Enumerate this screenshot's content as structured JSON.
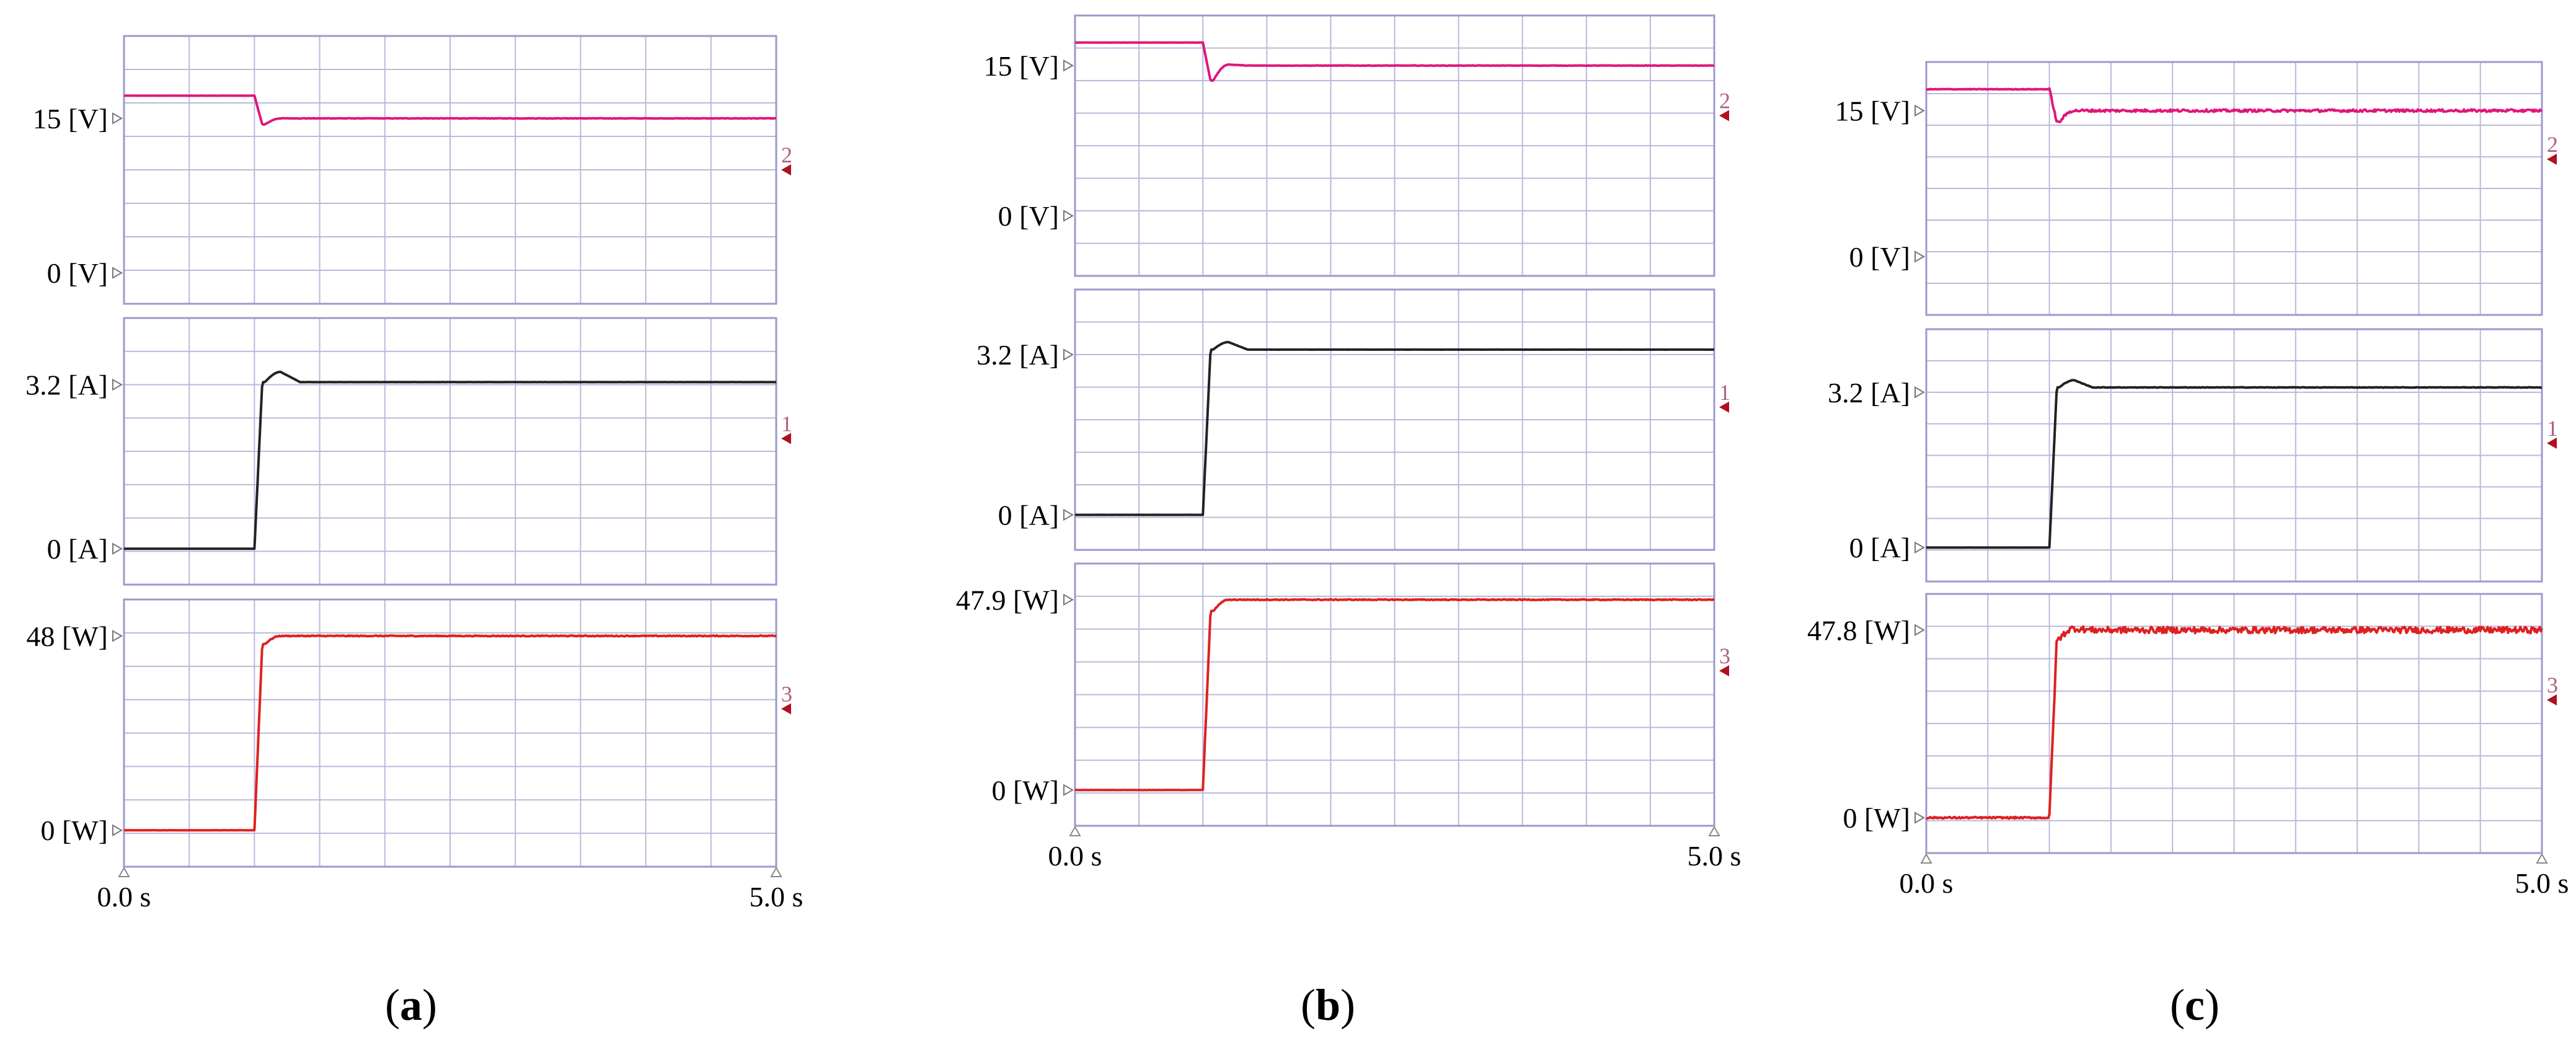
{
  "chart_data": [
    {
      "type": "line",
      "caption": {
        "open": "(",
        "letter": "a",
        "close": ")"
      },
      "x_ticks": [
        "0.0 s",
        "5.0 s"
      ],
      "xlim": [
        0,
        5
      ],
      "step_time": 1.0,
      "panels": [
        {
          "channel": "2",
          "color": "#e0167a",
          "ylim": [
            -3,
            23
          ],
          "ticks": [
            {
              "v": 15,
              "label": "15 [V]"
            },
            {
              "v": 0,
              "label": "0 [V]"
            }
          ],
          "marker_v": 10,
          "before": 17.2,
          "after": 15.0,
          "dip": 14.4,
          "overshoot": 15.0,
          "noise": 0.04
        },
        {
          "channel": "1",
          "color": "#222222",
          "ylim": [
            -0.7,
            4.5
          ],
          "ticks": [
            {
              "v": 3.2,
              "label": "3.2 [A]"
            },
            {
              "v": 0,
              "label": "0 [A]"
            }
          ],
          "marker_v": 2.15,
          "before": 0,
          "after": 3.25,
          "dip": 3.25,
          "overshoot": 3.45,
          "noise": 0.008
        },
        {
          "channel": "3",
          "color": "#e02020",
          "ylim": [
            -9,
            57
          ],
          "ticks": [
            {
              "v": 48,
              "label": "48 [W]"
            },
            {
              "v": 0,
              "label": "0 [W]"
            }
          ],
          "marker_v": 30,
          "before": 0,
          "after": 48,
          "dip": 46,
          "overshoot": 48,
          "noise": 0.08
        }
      ]
    },
    {
      "type": "line",
      "caption": {
        "open": "(",
        "letter": "b",
        "close": ")"
      },
      "x_ticks": [
        "0.0 s",
        "5.0 s"
      ],
      "xlim": [
        0,
        5
      ],
      "step_time": 1.0,
      "panels": [
        {
          "channel": "2",
          "color": "#e0167a",
          "ylim": [
            -6,
            20
          ],
          "ticks": [
            {
              "v": 15,
              "label": "15 [V]"
            },
            {
              "v": 0,
              "label": "0 [V]"
            }
          ],
          "marker_v": 10,
          "before": 17.3,
          "after": 15.0,
          "dip": 13.5,
          "overshoot": 15.1,
          "noise": 0.04
        },
        {
          "channel": "1",
          "color": "#222222",
          "ylim": [
            -0.7,
            4.5
          ],
          "ticks": [
            {
              "v": 3.2,
              "label": "3.2 [A]"
            },
            {
              "v": 0,
              "label": "0 [A]"
            }
          ],
          "marker_v": 2.15,
          "before": 0,
          "after": 3.3,
          "dip": 3.3,
          "overshoot": 3.45,
          "noise": 0.008
        },
        {
          "channel": "3",
          "color": "#e02020",
          "ylim": [
            -9,
            57
          ],
          "ticks": [
            {
              "v": 47.9,
              "label": "47.9 [W]"
            },
            {
              "v": 0,
              "label": "0 [W]"
            }
          ],
          "marker_v": 30,
          "before": 0,
          "after": 47.9,
          "dip": 45,
          "overshoot": 47.9,
          "noise": 0.08
        }
      ]
    },
    {
      "type": "line",
      "caption": {
        "open": "(",
        "letter": "c",
        "close": ")"
      },
      "x_ticks": [
        "0.0 s",
        "5.0 s"
      ],
      "xlim": [
        0,
        5
      ],
      "step_time": 1.0,
      "panels": [
        {
          "channel": "2",
          "color": "#e0167a",
          "ylim": [
            -6,
            20
          ],
          "ticks": [
            {
              "v": 15,
              "label": "15 [V]"
            },
            {
              "v": 0,
              "label": "0 [V]"
            }
          ],
          "marker_v": 10,
          "before": 17.2,
          "after": 15.0,
          "dip": 13.8,
          "overshoot": 15.0,
          "noise": 0.25
        },
        {
          "channel": "1",
          "color": "#222222",
          "ylim": [
            -0.7,
            4.5
          ],
          "ticks": [
            {
              "v": 3.2,
              "label": "3.2 [A]"
            },
            {
              "v": 0,
              "label": "0 [A]"
            }
          ],
          "marker_v": 2.15,
          "before": 0,
          "after": 3.3,
          "dip": 3.3,
          "overshoot": 3.45,
          "noise": 0.05
        },
        {
          "channel": "3",
          "color": "#e02020",
          "ylim": [
            -9,
            57
          ],
          "ticks": [
            {
              "v": 47.8,
              "label": "47.8 [W]"
            },
            {
              "v": 0,
              "label": "0 [W]"
            }
          ],
          "marker_v": 30,
          "before": 0,
          "after": 47.8,
          "dip": 45.5,
          "overshoot": 48.2,
          "noise": 0.6
        }
      ]
    }
  ]
}
